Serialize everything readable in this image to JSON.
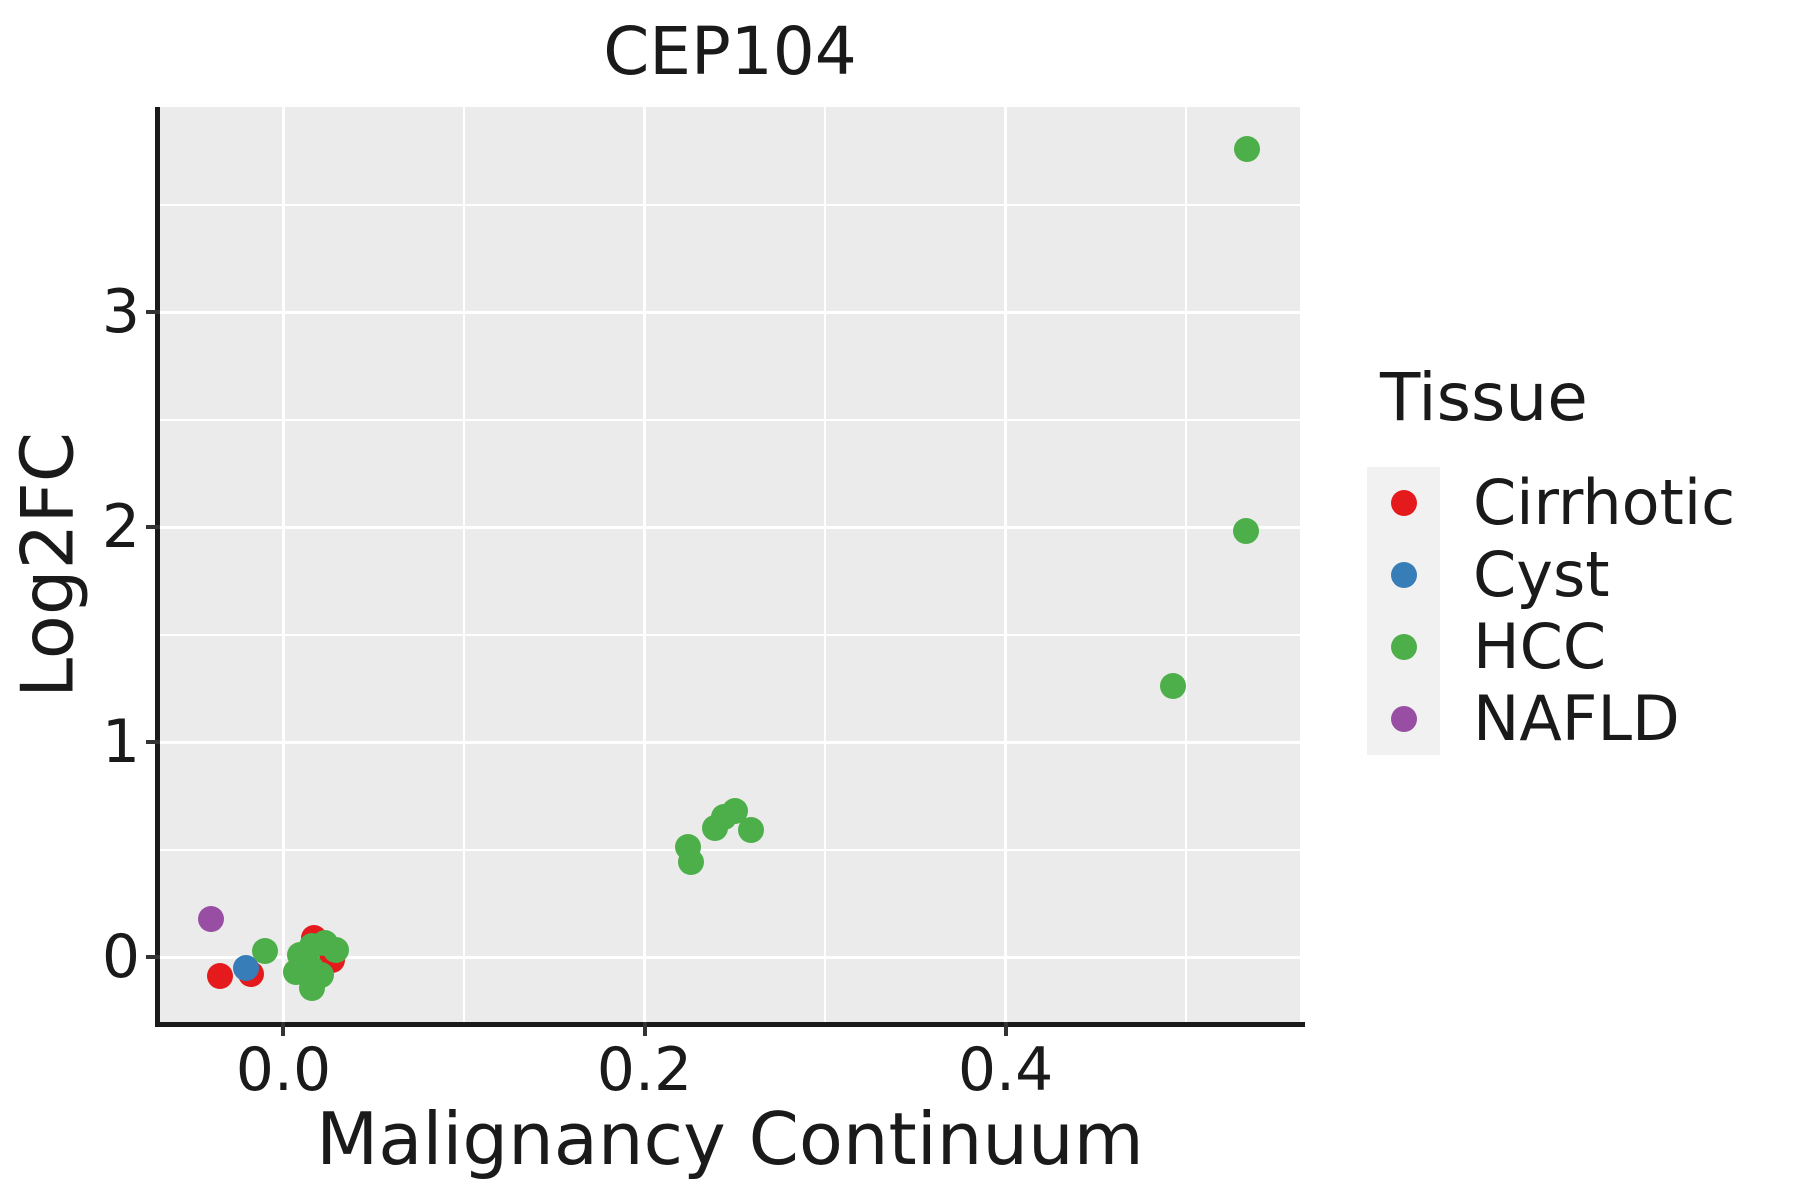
{
  "chart_data": {
    "type": "scatter",
    "title": "CEP104",
    "xlabel": "Malignancy Continuum",
    "ylabel": "Log2FC",
    "xlim": [
      -0.0684,
      0.5631
    ],
    "ylim": [
      -0.3023,
      3.9535
    ],
    "x_major_ticks": [
      0.0,
      0.2,
      0.4
    ],
    "x_tick_labels": [
      "0.0",
      "0.2",
      "0.4"
    ],
    "x_minor_ticks": [
      0.1,
      0.3,
      0.5
    ],
    "y_major_ticks": [
      0,
      1,
      2,
      3
    ],
    "y_tick_labels": [
      "0",
      "1",
      "2",
      "3"
    ],
    "y_minor_ticks": [
      0.5,
      1.5,
      2.5,
      3.5
    ],
    "grid": true,
    "panel_background": "#EBEBEB",
    "grid_color": "#FFFFFF",
    "legend_position": "right",
    "legend_title": "Tissue",
    "series": [
      {
        "name": "Cirrhotic",
        "color": "#E41A1C",
        "points": [
          [
            -0.035,
            -0.088
          ],
          [
            -0.018,
            -0.079
          ],
          [
            0.017,
            0.088
          ],
          [
            0.027,
            -0.014
          ]
        ]
      },
      {
        "name": "Cyst",
        "color": "#377EB8",
        "points": [
          [
            -0.021,
            -0.053
          ]
        ]
      },
      {
        "name": "HCC",
        "color": "#4DAF4A",
        "points": [
          [
            -0.01,
            0.028
          ],
          [
            0.009,
            0.009
          ],
          [
            0.016,
            0.051
          ],
          [
            0.023,
            0.065
          ],
          [
            0.029,
            0.033
          ],
          [
            0.015,
            -0.051
          ],
          [
            0.007,
            -0.07
          ],
          [
            0.021,
            -0.084
          ],
          [
            0.016,
            -0.144
          ],
          [
            0.224,
            0.51
          ],
          [
            0.226,
            0.44
          ],
          [
            0.239,
            0.6
          ],
          [
            0.244,
            0.65
          ],
          [
            0.25,
            0.68
          ],
          [
            0.259,
            0.59
          ],
          [
            0.493,
            1.26
          ],
          [
            0.533,
            1.98
          ],
          [
            0.534,
            3.76
          ]
        ]
      },
      {
        "name": "NAFLD",
        "color": "#984EA3",
        "points": [
          [
            -0.04,
            0.177
          ]
        ]
      }
    ]
  },
  "legend": {
    "title": "Tissue",
    "entries": [
      {
        "label": "Cirrhotic",
        "color": "#E41A1C"
      },
      {
        "label": "Cyst",
        "color": "#377EB8"
      },
      {
        "label": "HCC",
        "color": "#4DAF4A"
      },
      {
        "label": "NAFLD",
        "color": "#984EA3"
      }
    ]
  }
}
